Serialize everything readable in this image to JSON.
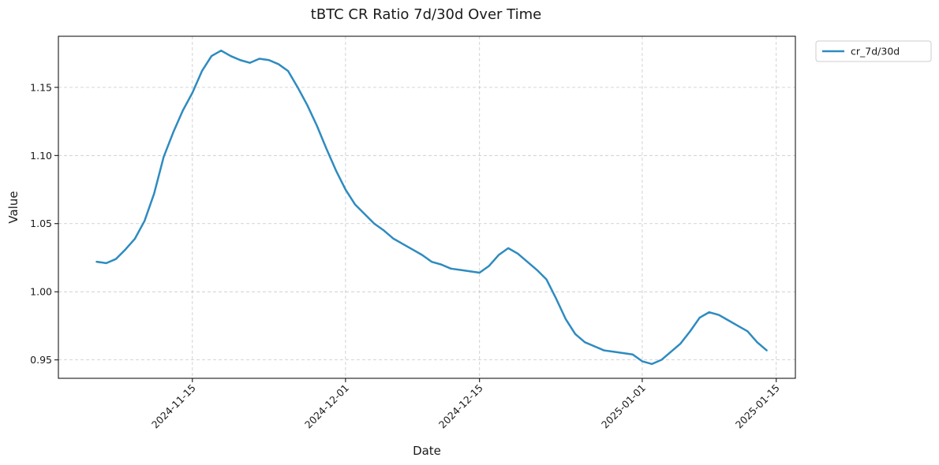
{
  "chart_data": {
    "type": "line",
    "title": "tBTC CR Ratio 7d/30d Over Time",
    "xlabel": "Date",
    "ylabel": "Value",
    "x_ticks": [
      "2024-11-15",
      "2024-12-01",
      "2024-12-15",
      "2025-01-01",
      "2025-01-15"
    ],
    "y_ticks": [
      "0.95",
      "1.00",
      "1.05",
      "1.10",
      "1.15"
    ],
    "xlim": [
      "2024-11-01",
      "2025-01-17"
    ],
    "ylim": [
      0.9365,
      1.1875
    ],
    "grid": true,
    "legend_position": "outside-top-right",
    "series": [
      {
        "name": "cr_7d/30d",
        "color": "#2e8bc0",
        "points": [
          [
            "2024-11-05",
            1.022
          ],
          [
            "2024-11-06",
            1.021
          ],
          [
            "2024-11-07",
            1.024
          ],
          [
            "2024-11-08",
            1.031
          ],
          [
            "2024-11-09",
            1.039
          ],
          [
            "2024-11-10",
            1.052
          ],
          [
            "2024-11-11",
            1.072
          ],
          [
            "2024-11-12",
            1.099
          ],
          [
            "2024-11-13",
            1.117
          ],
          [
            "2024-11-14",
            1.133
          ],
          [
            "2024-11-15",
            1.146
          ],
          [
            "2024-11-16",
            1.162
          ],
          [
            "2024-11-17",
            1.173
          ],
          [
            "2024-11-18",
            1.177
          ],
          [
            "2024-11-19",
            1.173
          ],
          [
            "2024-11-20",
            1.17
          ],
          [
            "2024-11-21",
            1.168
          ],
          [
            "2024-11-22",
            1.171
          ],
          [
            "2024-11-23",
            1.17
          ],
          [
            "2024-11-24",
            1.167
          ],
          [
            "2024-11-25",
            1.162
          ],
          [
            "2024-11-26",
            1.15
          ],
          [
            "2024-11-27",
            1.137
          ],
          [
            "2024-11-28",
            1.122
          ],
          [
            "2024-11-29",
            1.105
          ],
          [
            "2024-11-30",
            1.089
          ],
          [
            "2024-12-01",
            1.075
          ],
          [
            "2024-12-02",
            1.064
          ],
          [
            "2024-12-03",
            1.057
          ],
          [
            "2024-12-04",
            1.05
          ],
          [
            "2024-12-05",
            1.045
          ],
          [
            "2024-12-06",
            1.039
          ],
          [
            "2024-12-07",
            1.035
          ],
          [
            "2024-12-08",
            1.031
          ],
          [
            "2024-12-09",
            1.027
          ],
          [
            "2024-12-10",
            1.022
          ],
          [
            "2024-12-11",
            1.02
          ],
          [
            "2024-12-12",
            1.017
          ],
          [
            "2024-12-13",
            1.016
          ],
          [
            "2024-12-14",
            1.015
          ],
          [
            "2024-12-15",
            1.014
          ],
          [
            "2024-12-16",
            1.019
          ],
          [
            "2024-12-17",
            1.027
          ],
          [
            "2024-12-18",
            1.032
          ],
          [
            "2024-12-19",
            1.028
          ],
          [
            "2024-12-20",
            1.022
          ],
          [
            "2024-12-21",
            1.016
          ],
          [
            "2024-12-22",
            1.009
          ],
          [
            "2024-12-23",
            0.995
          ],
          [
            "2024-12-24",
            0.98
          ],
          [
            "2024-12-25",
            0.969
          ],
          [
            "2024-12-26",
            0.963
          ],
          [
            "2024-12-27",
            0.96
          ],
          [
            "2024-12-28",
            0.957
          ],
          [
            "2024-12-29",
            0.956
          ],
          [
            "2024-12-30",
            0.955
          ],
          [
            "2024-12-31",
            0.954
          ],
          [
            "2025-01-01",
            0.949
          ],
          [
            "2025-01-02",
            0.947
          ],
          [
            "2025-01-03",
            0.95
          ],
          [
            "2025-01-04",
            0.956
          ],
          [
            "2025-01-05",
            0.962
          ],
          [
            "2025-01-06",
            0.971
          ],
          [
            "2025-01-07",
            0.981
          ],
          [
            "2025-01-08",
            0.985
          ],
          [
            "2025-01-09",
            0.983
          ],
          [
            "2025-01-10",
            0.979
          ],
          [
            "2025-01-11",
            0.975
          ],
          [
            "2025-01-12",
            0.971
          ],
          [
            "2025-01-13",
            0.963
          ],
          [
            "2025-01-14",
            0.957
          ]
        ]
      }
    ]
  }
}
